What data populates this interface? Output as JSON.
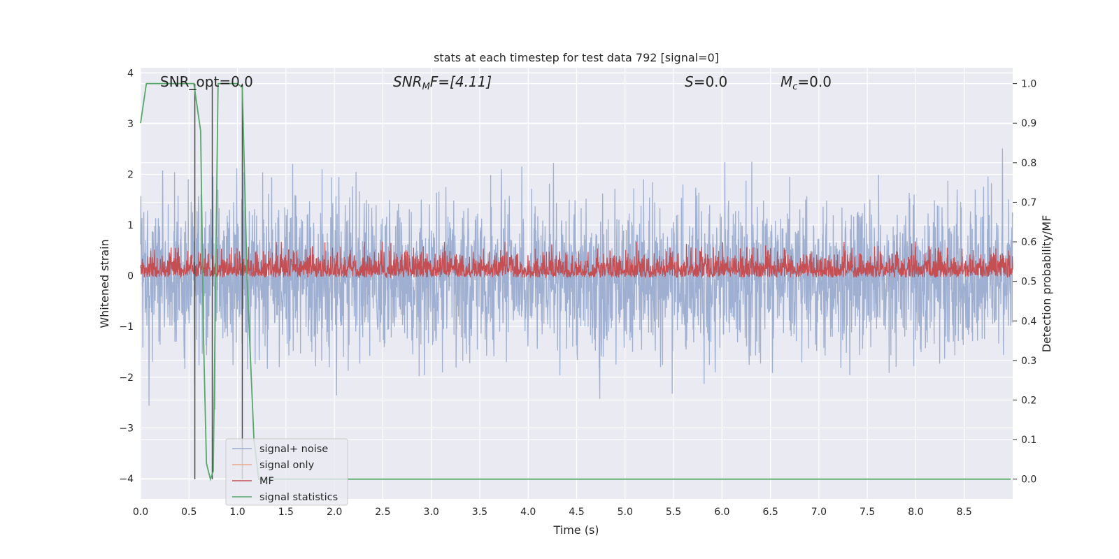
{
  "chart_data": {
    "type": "line",
    "title": "stats at each timestep for test data 792 [signal=0]",
    "xlabel": "Time (s)",
    "ylabel": "Whitened strain",
    "y2label": "Detection probability/MF",
    "xlim": [
      0.0,
      9.0
    ],
    "ylim": [
      -4.4,
      4.1
    ],
    "y2lim": [
      -0.05,
      1.04
    ],
    "xticks": [
      "0.0",
      "0.5",
      "1.0",
      "1.5",
      "2.0",
      "2.5",
      "3.0",
      "3.5",
      "4.0",
      "4.5",
      "5.0",
      "5.5",
      "6.0",
      "6.5",
      "7.0",
      "7.5",
      "8.0",
      "8.5"
    ],
    "yticks": [
      "4",
      "3",
      "2",
      "1",
      "0",
      "−1",
      "−2",
      "−3",
      "−4"
    ],
    "y2ticks": [
      "1.0",
      "0.9",
      "0.8",
      "0.7",
      "0.6",
      "0.5",
      "0.4",
      "0.3",
      "0.2",
      "0.1",
      "0.0"
    ],
    "grid": true,
    "legend_position": "lower-left",
    "annotations": {
      "snr_opt": "SNR_opt=0.0",
      "snr_mf_main": "SNR",
      "snr_mf_sub": "M",
      "snr_mf_rest": "F=[4.11]",
      "s_main": "S",
      "s_rest": "=0.0",
      "mc_main": "M",
      "mc_sub": "c",
      "mc_rest": "=0.0"
    },
    "series": [
      {
        "name": "signal+ noise",
        "color": "#9aaccf",
        "description_values": "whitened noise, approx. zero mean, std 0.75, spikes to about ±3"
      },
      {
        "name": "signal only",
        "color": "#e8a98b",
        "values": []
      },
      {
        "name": "MF",
        "color": "#c44e52",
        "baseline": 0.51,
        "range": [
          0.5,
          0.6
        ]
      },
      {
        "name": "signal statistics",
        "color": "#55a868",
        "x": [
          0.0,
          0.06,
          0.55,
          0.62,
          0.65,
          0.68,
          0.72,
          0.75,
          0.8,
          1.0,
          1.05,
          1.1,
          1.17,
          1.22,
          8.98
        ],
        "y": [
          0.9,
          1.0,
          1.0,
          0.88,
          0.35,
          0.04,
          0.0,
          0.02,
          1.0,
          1.0,
          0.99,
          0.5,
          0.1,
          0.0,
          0.0
        ]
      }
    ],
    "vertical_markers": {
      "color": "#4a4a4a",
      "x": [
        0.56,
        0.74,
        1.05
      ],
      "y2": [
        0.0,
        1.0
      ]
    }
  },
  "legend": {
    "items": [
      "signal+ noise",
      "signal only",
      "MF",
      "signal statistics"
    ]
  }
}
